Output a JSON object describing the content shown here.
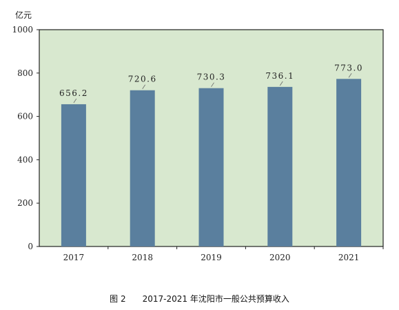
{
  "chart_data": {
    "type": "bar",
    "categories": [
      "2017",
      "2018",
      "2019",
      "2020",
      "2021"
    ],
    "values": [
      656.2,
      720.6,
      730.3,
      736.1,
      773.0
    ],
    "data_labels": [
      "656.2",
      "720.6",
      "730.3",
      "736.1",
      "773.0"
    ],
    "ylabel": "亿元",
    "ylim": [
      0,
      1000
    ],
    "yticks": [
      "0",
      "200",
      "400",
      "600",
      "800",
      "1000"
    ],
    "ytick_values": [
      0,
      200,
      400,
      600,
      800,
      1000
    ],
    "grid": false,
    "colors": {
      "bar": "#5a7f9e",
      "plot_bg": "#d8e8cf",
      "frame": "#222222"
    }
  },
  "caption": {
    "figure_no": "图 2",
    "title": "2017-2021 年沈阳市一般公共预算收入"
  }
}
